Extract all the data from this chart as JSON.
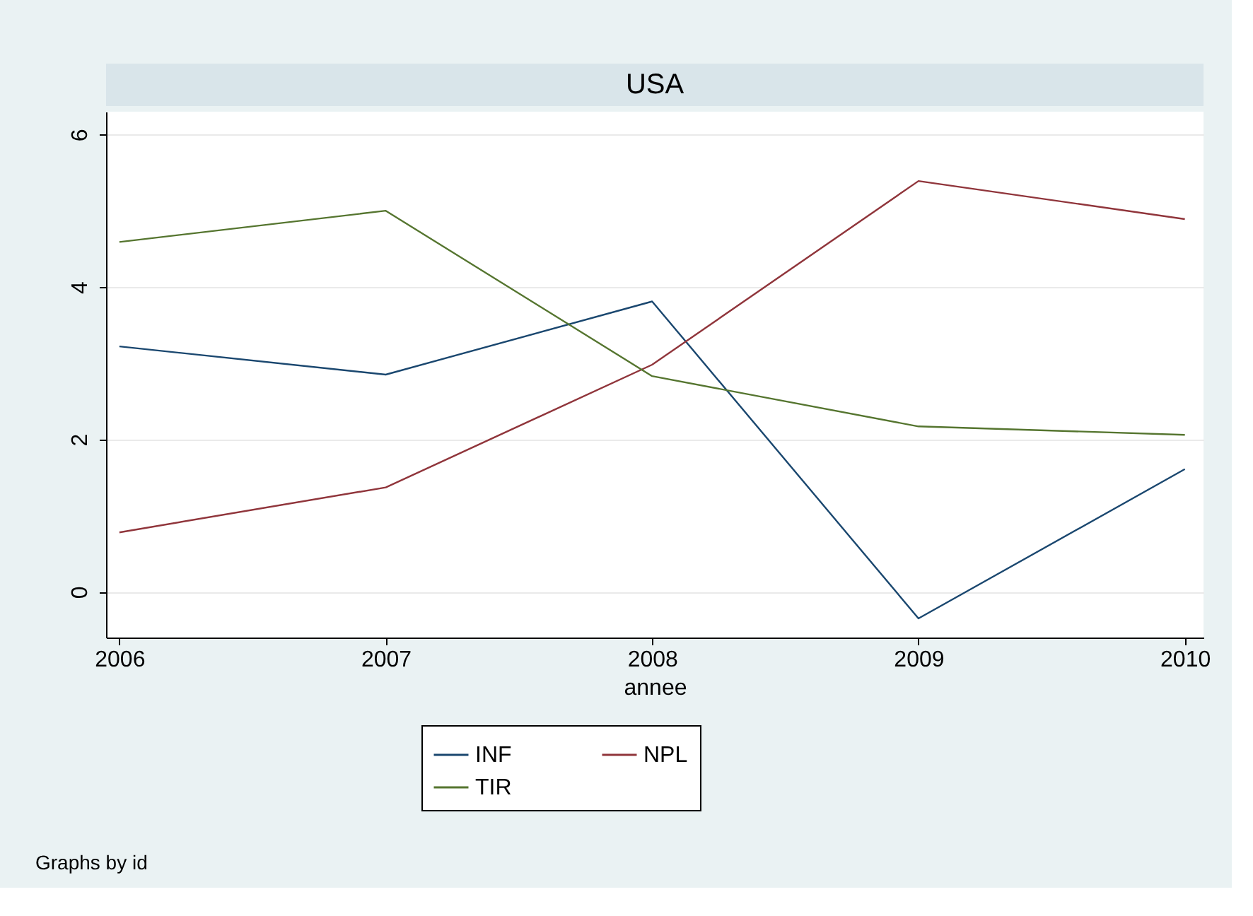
{
  "chart_data": {
    "type": "line",
    "title": "USA",
    "xlabel": "annee",
    "x": [
      2006,
      2007,
      2008,
      2009,
      2010
    ],
    "series": [
      {
        "name": "INF",
        "color": "#1a476f",
        "values": [
          3.22,
          2.85,
          3.81,
          -0.35,
          1.61
        ]
      },
      {
        "name": "NPL",
        "color": "#90353b",
        "values": [
          0.78,
          1.37,
          2.98,
          5.39,
          4.89
        ]
      },
      {
        "name": "TIR",
        "color": "#55752f",
        "values": [
          4.59,
          5.0,
          2.83,
          2.17,
          2.06
        ]
      }
    ],
    "xlim": [
      2005.95,
      2010.07
    ],
    "xticks": [
      2006,
      2007,
      2008,
      2009,
      2010
    ],
    "ylim": [
      -0.6,
      6.3
    ],
    "yticks": [
      0,
      2,
      4,
      6
    ],
    "grid": "y",
    "legend": "bottom",
    "marker": "none",
    "line_style": "solid",
    "annotations": [
      "Graphs by id"
    ]
  }
}
